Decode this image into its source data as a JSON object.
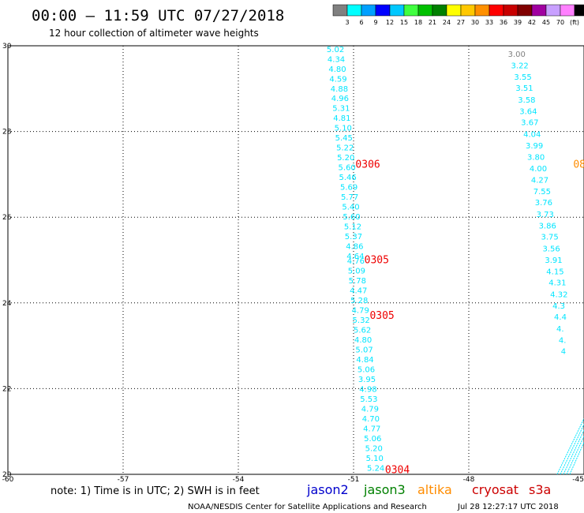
{
  "header": {
    "title": "00:00 – 11:59 UTC 07/27/2018",
    "subtitle": "12 hour collection of altimeter wave heights"
  },
  "legend": {
    "colors": [
      "#808080",
      "#00ffff",
      "#00a0ff",
      "#0000ff",
      "#00c8ff",
      "#40ff40",
      "#00c000",
      "#008000",
      "#ffff00",
      "#ffc800",
      "#ff9000",
      "#ff0000",
      "#c80000",
      "#800000",
      "#a000a0",
      "#c8a0ff",
      "#ff80ff",
      "#000000"
    ],
    "labels": [
      "3",
      "6",
      "9",
      "12",
      "15",
      "18",
      "21",
      "24",
      "27",
      "30",
      "33",
      "36",
      "39",
      "42",
      "45",
      "70"
    ],
    "unit": "(ft)"
  },
  "footer": {
    "note": "note: 1) Time is in UTC; 2) SWH is in feet",
    "satellites": [
      {
        "name": "jason2",
        "color": "#0000cc"
      },
      {
        "name": "jason3",
        "color": "#008000"
      },
      {
        "name": "altika",
        "color": "#ff8c00"
      },
      {
        "name": "cryosat",
        "color": "#cc0000"
      },
      {
        "name": "s3a",
        "color": "#cc0000"
      }
    ],
    "credit": "NOAA/NESDIS Center for Satellite Applications and Research",
    "timestamp": "Jul 28 12:27:17 UTC 2018"
  },
  "chart_data": {
    "type": "scatter",
    "xlim": [
      -60,
      -45
    ],
    "ylim": [
      20,
      30
    ],
    "xticks": [
      -60,
      -57,
      -54,
      -51,
      -48,
      -45
    ],
    "yticks": [
      20,
      22,
      24,
      26,
      28,
      30
    ],
    "xtick_labels": [
      "-60",
      "-57",
      "-54",
      "-51",
      "-48",
      "-45"
    ],
    "ytick_labels": [
      "20",
      "22",
      "24",
      "26",
      "28",
      "30"
    ],
    "grid": true,
    "tracks": [
      {
        "color": "#00e5ff",
        "points": [
          {
            "lon": -51.7,
            "lat": 29.93,
            "label": "5.02"
          },
          {
            "lon": -51.68,
            "lat": 29.7,
            "label": "4.34"
          },
          {
            "lon": -51.65,
            "lat": 29.47,
            "label": "4.80"
          },
          {
            "lon": -51.63,
            "lat": 29.24,
            "label": "4.59"
          },
          {
            "lon": -51.6,
            "lat": 29.01,
            "label": "4.88"
          },
          {
            "lon": -51.58,
            "lat": 28.78,
            "label": "4.96"
          },
          {
            "lon": -51.55,
            "lat": 28.55,
            "label": "5.31"
          },
          {
            "lon": -51.53,
            "lat": 28.32,
            "label": "4.81"
          },
          {
            "lon": -51.5,
            "lat": 28.09,
            "label": "5.10"
          },
          {
            "lon": -51.48,
            "lat": 27.86,
            "label": "5.45"
          },
          {
            "lon": -51.45,
            "lat": 27.63,
            "label": "5.22"
          },
          {
            "lon": -51.43,
            "lat": 27.4,
            "label": "5.20"
          },
          {
            "lon": -51.4,
            "lat": 27.17,
            "label": "5.60"
          },
          {
            "lon": -51.38,
            "lat": 26.94,
            "label": "5.46"
          },
          {
            "lon": -51.35,
            "lat": 26.71,
            "label": "5.69"
          },
          {
            "lon": -51.33,
            "lat": 26.48,
            "label": "5.77"
          },
          {
            "lon": -51.3,
            "lat": 26.25,
            "label": "5.40"
          },
          {
            "lon": -51.28,
            "lat": 26.02,
            "label": "5.60"
          },
          {
            "lon": -51.25,
            "lat": 25.79,
            "label": "5.12"
          },
          {
            "lon": -51.23,
            "lat": 25.56,
            "label": "5.37"
          },
          {
            "lon": -51.2,
            "lat": 25.33,
            "label": "4.86"
          },
          {
            "lon": -51.18,
            "lat": 25.1,
            "label": "4.64"
          },
          {
            "lon": -51.17,
            "lat": 24.99,
            "label": "4.76"
          },
          {
            "lon": -51.15,
            "lat": 24.76,
            "label": "5.09"
          },
          {
            "lon": -51.13,
            "lat": 24.53,
            "label": "5.78"
          },
          {
            "lon": -51.1,
            "lat": 24.3,
            "label": "4.47"
          },
          {
            "lon": -51.08,
            "lat": 24.07,
            "label": "5.28"
          },
          {
            "lon": -51.05,
            "lat": 23.84,
            "label": "4.79"
          },
          {
            "lon": -51.03,
            "lat": 23.61,
            "label": "5.32"
          },
          {
            "lon": -51.0,
            "lat": 23.38,
            "label": "5.62"
          },
          {
            "lon": -50.98,
            "lat": 23.15,
            "label": "4.80"
          },
          {
            "lon": -50.95,
            "lat": 22.92,
            "label": "5.07"
          },
          {
            "lon": -50.93,
            "lat": 22.69,
            "label": "4.84"
          },
          {
            "lon": -50.9,
            "lat": 22.46,
            "label": "5.06"
          },
          {
            "lon": -50.88,
            "lat": 22.23,
            "label": "3.95"
          },
          {
            "lon": -50.85,
            "lat": 22.0,
            "label": "4.98"
          },
          {
            "lon": -50.83,
            "lat": 21.77,
            "label": "5.53"
          },
          {
            "lon": -50.8,
            "lat": 21.54,
            "label": "4.79"
          },
          {
            "lon": -50.78,
            "lat": 21.31,
            "label": "4.70"
          },
          {
            "lon": -50.75,
            "lat": 21.08,
            "label": "4.77"
          },
          {
            "lon": -50.73,
            "lat": 20.85,
            "label": "5.06"
          },
          {
            "lon": -50.7,
            "lat": 20.62,
            "label": "5.20"
          },
          {
            "lon": -50.68,
            "lat": 20.39,
            "label": "5.10"
          },
          {
            "lon": -50.65,
            "lat": 20.16,
            "label": "5.24"
          }
        ]
      },
      {
        "color": "#00e5ff",
        "points": [
          {
            "lon": -46.98,
            "lat": 29.82,
            "label": "3.00",
            "color": "#808080"
          },
          {
            "lon": -46.9,
            "lat": 29.55,
            "label": "3.22"
          },
          {
            "lon": -46.82,
            "lat": 29.28,
            "label": "3.55"
          },
          {
            "lon": -46.78,
            "lat": 29.02,
            "label": "3.51"
          },
          {
            "lon": -46.72,
            "lat": 28.75,
            "label": "3.58"
          },
          {
            "lon": -46.68,
            "lat": 28.48,
            "label": "3.64"
          },
          {
            "lon": -46.64,
            "lat": 28.22,
            "label": "3.67"
          },
          {
            "lon": -46.58,
            "lat": 27.95,
            "label": "4.04"
          },
          {
            "lon": -46.52,
            "lat": 27.68,
            "label": "3.99"
          },
          {
            "lon": -46.48,
            "lat": 27.41,
            "label": "3.80"
          },
          {
            "lon": -46.42,
            "lat": 27.15,
            "label": "4.00"
          },
          {
            "lon": -46.38,
            "lat": 26.88,
            "label": "4.27"
          },
          {
            "lon": -46.32,
            "lat": 26.61,
            "label": "7.55"
          },
          {
            "lon": -46.28,
            "lat": 26.35,
            "label": "3.76"
          },
          {
            "lon": -46.24,
            "lat": 26.08,
            "label": "3.73"
          },
          {
            "lon": -46.18,
            "lat": 25.81,
            "label": "3.86"
          },
          {
            "lon": -46.12,
            "lat": 25.55,
            "label": "3.75"
          },
          {
            "lon": -46.08,
            "lat": 25.28,
            "label": "3.56"
          },
          {
            "lon": -46.02,
            "lat": 25.01,
            "label": "3.91"
          },
          {
            "lon": -45.98,
            "lat": 24.74,
            "label": "4.15"
          },
          {
            "lon": -45.92,
            "lat": 24.48,
            "label": "4.31"
          },
          {
            "lon": -45.88,
            "lat": 24.21,
            "label": "4.32"
          },
          {
            "lon": -45.82,
            "lat": 23.94,
            "label": "4.3"
          },
          {
            "lon": -45.78,
            "lat": 23.68,
            "label": "4.4"
          },
          {
            "lon": -45.72,
            "lat": 23.41,
            "label": "4."
          },
          {
            "lon": -45.66,
            "lat": 23.14,
            "label": "4."
          },
          {
            "lon": -45.6,
            "lat": 22.88,
            "label": "4"
          }
        ]
      }
    ],
    "dense_track": {
      "color": "#00e5ff",
      "from": [
        -45.7,
        20.0
      ],
      "to": [
        -45.0,
        21.3
      ]
    },
    "pass_labels": [
      {
        "lon": -50.95,
        "lat": 27.25,
        "text": "0306",
        "color": "#ee0000"
      },
      {
        "lon": -50.72,
        "lat": 25.02,
        "text": "0305",
        "color": "#ee0000"
      },
      {
        "lon": -50.58,
        "lat": 23.72,
        "text": "0305",
        "color": "#ee0000"
      },
      {
        "lon": -50.18,
        "lat": 20.12,
        "text": "0304",
        "color": "#ee0000"
      },
      {
        "lon": -45.28,
        "lat": 27.25,
        "text": "08",
        "color": "#ff8c00"
      }
    ]
  }
}
